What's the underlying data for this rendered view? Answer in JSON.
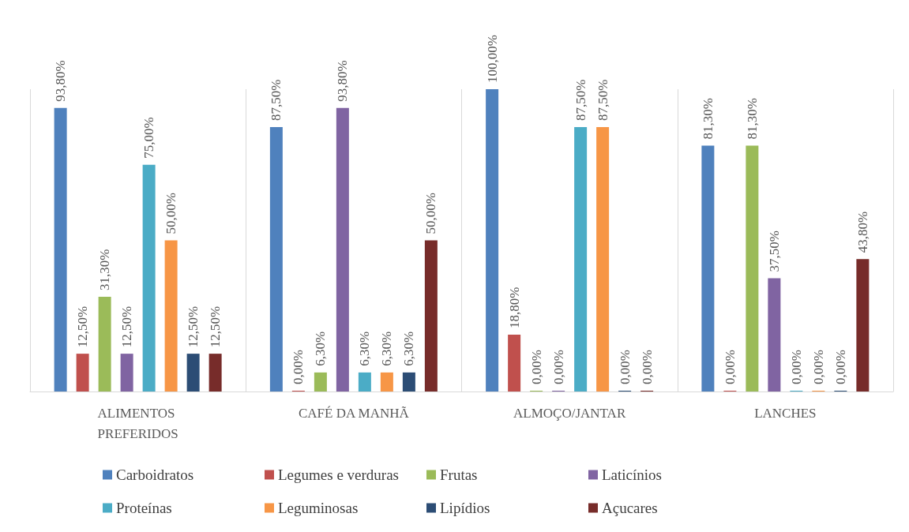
{
  "chart_data": {
    "type": "bar",
    "categories": [
      "ALIMENTOS PREFERIDOS",
      "CAFÉ DA MANHÃ",
      "ALMOÇO/JANTAR",
      "LANCHES"
    ],
    "series": [
      {
        "name": "Carboidratos",
        "color": "#4f81bd",
        "values": [
          93.8,
          87.5,
          100,
          81.3
        ],
        "value_labels": [
          "93,80%",
          "87,50%",
          "100,00%",
          "81,30%"
        ]
      },
      {
        "name": "Legumes e verduras",
        "color": "#c0504d",
        "values": [
          12.5,
          0,
          18.8,
          0
        ],
        "value_labels": [
          "12,50%",
          "0,00%",
          "18,80%",
          "0,00%"
        ]
      },
      {
        "name": "Frutas",
        "color": "#9bbb59",
        "values": [
          31.3,
          6.3,
          0,
          81.3
        ],
        "value_labels": [
          "31,30%",
          "6,30%",
          "0,00%",
          "81,30%"
        ]
      },
      {
        "name": "Laticínios",
        "color": "#8064a2",
        "values": [
          12.5,
          93.8,
          0,
          37.5
        ],
        "value_labels": [
          "12,50%",
          "93,80%",
          "0,00%",
          "37,50%"
        ]
      },
      {
        "name": "Proteínas",
        "color": "#4bacc6",
        "values": [
          75,
          6.3,
          87.5,
          0
        ],
        "value_labels": [
          "75,00%",
          "6,30%",
          "87,50%",
          "0,00%"
        ]
      },
      {
        "name": "Leguminosas",
        "color": "#f79646",
        "values": [
          50,
          6.3,
          87.5,
          0
        ],
        "value_labels": [
          "50,00%",
          "6,30%",
          "87,50%",
          "0,00%"
        ]
      },
      {
        "name": "Lipídios",
        "color": "#2c4d75",
        "values": [
          12.5,
          6.3,
          0,
          0
        ],
        "value_labels": [
          "12,50%",
          "6,30%",
          "0,00%",
          "0,00%"
        ]
      },
      {
        "name": "Açucares",
        "color": "#772c2a",
        "values": [
          12.5,
          50,
          0,
          43.8
        ],
        "value_labels": [
          "12,50%",
          "50,00%",
          "0,00%",
          "43,80%"
        ]
      }
    ],
    "legend": "bottom"
  }
}
